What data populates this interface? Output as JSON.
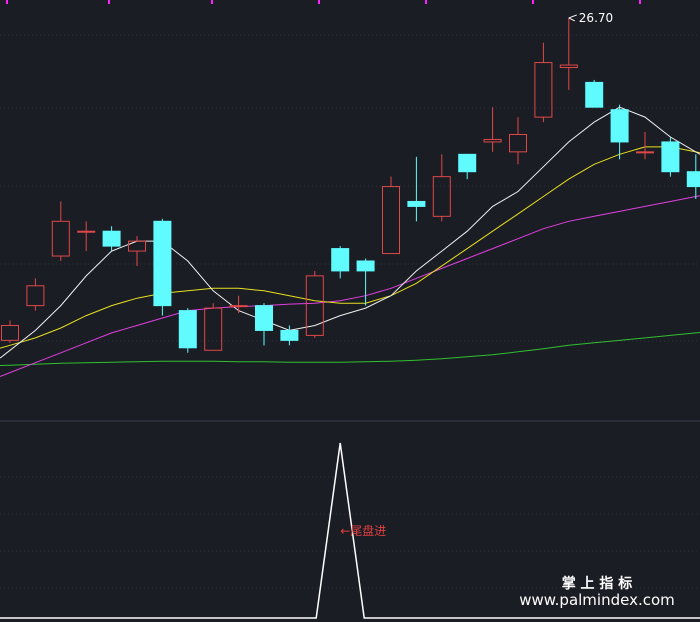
{
  "chart_data": {
    "type": "candlestick",
    "max_label": "26.70",
    "colors": {
      "up": "#e04848",
      "down": "#5ffbff",
      "ma_white": "#f0f0f0",
      "ma_yellow": "#e8e020",
      "ma_magenta": "#e040e0",
      "ma_green": "#30c030",
      "signal": "#ffffff",
      "signal_label": "#e04040",
      "grid": "#2c3040",
      "marker": "#ff20ff"
    },
    "candles": [
      {
        "o": 20.2,
        "c": 20.5,
        "h": 20.6,
        "l": 20.15
      },
      {
        "o": 20.9,
        "c": 21.3,
        "h": 21.45,
        "l": 20.8
      },
      {
        "o": 21.9,
        "c": 22.6,
        "h": 23.0,
        "l": 21.8
      },
      {
        "o": 22.4,
        "c": 22.4,
        "h": 22.6,
        "l": 22.0
      },
      {
        "o": 22.4,
        "c": 22.1,
        "h": 22.5,
        "l": 22.0
      },
      {
        "o": 22.0,
        "c": 22.2,
        "h": 22.3,
        "l": 21.7
      },
      {
        "o": 22.6,
        "c": 20.9,
        "h": 22.65,
        "l": 20.7
      },
      {
        "o": 20.8,
        "c": 20.05,
        "h": 20.85,
        "l": 19.95
      },
      {
        "o": 20.0,
        "c": 20.85,
        "h": 20.95,
        "l": 20.0
      },
      {
        "o": 20.9,
        "c": 20.9,
        "h": 21.1,
        "l": 20.75
      },
      {
        "o": 20.9,
        "c": 20.4,
        "h": 20.95,
        "l": 20.1
      },
      {
        "o": 20.4,
        "c": 20.2,
        "h": 20.5,
        "l": 20.1
      },
      {
        "o": 20.3,
        "c": 21.5,
        "h": 21.6,
        "l": 20.25
      },
      {
        "o": 22.05,
        "c": 21.6,
        "h": 22.1,
        "l": 21.45
      },
      {
        "o": 21.8,
        "c": 21.6,
        "h": 21.85,
        "l": 20.9
      },
      {
        "o": 21.95,
        "c": 23.3,
        "h": 23.5,
        "l": 21.95
      },
      {
        "o": 23.0,
        "c": 22.9,
        "h": 23.9,
        "l": 22.6
      },
      {
        "o": 22.7,
        "c": 23.5,
        "h": 23.95,
        "l": 22.6
      },
      {
        "o": 23.95,
        "c": 23.6,
        "h": 23.95,
        "l": 23.45
      },
      {
        "o": 24.2,
        "c": 24.25,
        "h": 24.9,
        "l": 24.0
      },
      {
        "o": 24.0,
        "c": 24.35,
        "h": 24.7,
        "l": 23.75
      },
      {
        "o": 24.7,
        "c": 25.8,
        "h": 26.2,
        "l": 24.6
      },
      {
        "o": 25.7,
        "c": 25.75,
        "h": 26.7,
        "l": 25.25
      },
      {
        "o": 25.4,
        "c": 24.9,
        "h": 25.45,
        "l": 24.9
      },
      {
        "o": 24.85,
        "c": 24.2,
        "h": 24.95,
        "l": 23.85
      },
      {
        "o": 24.0,
        "c": 24.0,
        "h": 24.4,
        "l": 23.85
      },
      {
        "o": 24.2,
        "c": 23.6,
        "h": 24.3,
        "l": 23.5
      },
      {
        "o": 23.6,
        "c": 23.3,
        "h": 23.95,
        "l": 23.05
      }
    ],
    "ma_white": [
      20.0,
      20.4,
      20.9,
      21.5,
      22.0,
      22.2,
      22.2,
      21.8,
      21.2,
      20.8,
      20.6,
      20.4,
      20.5,
      20.7,
      20.85,
      21.1,
      21.6,
      22.0,
      22.4,
      22.9,
      23.2,
      23.7,
      24.2,
      24.6,
      24.9,
      24.7,
      24.3,
      24.0
    ],
    "ma_yellow": [
      20.1,
      20.25,
      20.45,
      20.7,
      20.9,
      21.05,
      21.15,
      21.2,
      21.25,
      21.25,
      21.2,
      21.1,
      21.0,
      20.95,
      20.95,
      21.1,
      21.35,
      21.7,
      22.05,
      22.4,
      22.75,
      23.1,
      23.45,
      23.75,
      23.95,
      24.1,
      24.1,
      24.0
    ],
    "ma_magenta": [
      19.55,
      19.75,
      19.95,
      20.15,
      20.35,
      20.5,
      20.65,
      20.8,
      20.85,
      20.88,
      20.9,
      20.93,
      20.95,
      21.0,
      21.1,
      21.25,
      21.45,
      21.65,
      21.85,
      22.05,
      22.25,
      22.45,
      22.6,
      22.7,
      22.8,
      22.9,
      23.0,
      23.1
    ],
    "ma_green": [
      19.7,
      19.72,
      19.74,
      19.75,
      19.76,
      19.77,
      19.78,
      19.78,
      19.78,
      19.77,
      19.77,
      19.76,
      19.76,
      19.76,
      19.77,
      19.78,
      19.8,
      19.83,
      19.87,
      19.91,
      19.97,
      20.03,
      20.1,
      20.15,
      20.2,
      20.25,
      20.3,
      20.35
    ],
    "ylim": [
      19.3,
      26.9
    ],
    "signal_label": "←尾盘进",
    "signal_index": 13
  },
  "watermark": {
    "line1": "掌 上 指 标",
    "line2": "www.palmindex.com"
  }
}
